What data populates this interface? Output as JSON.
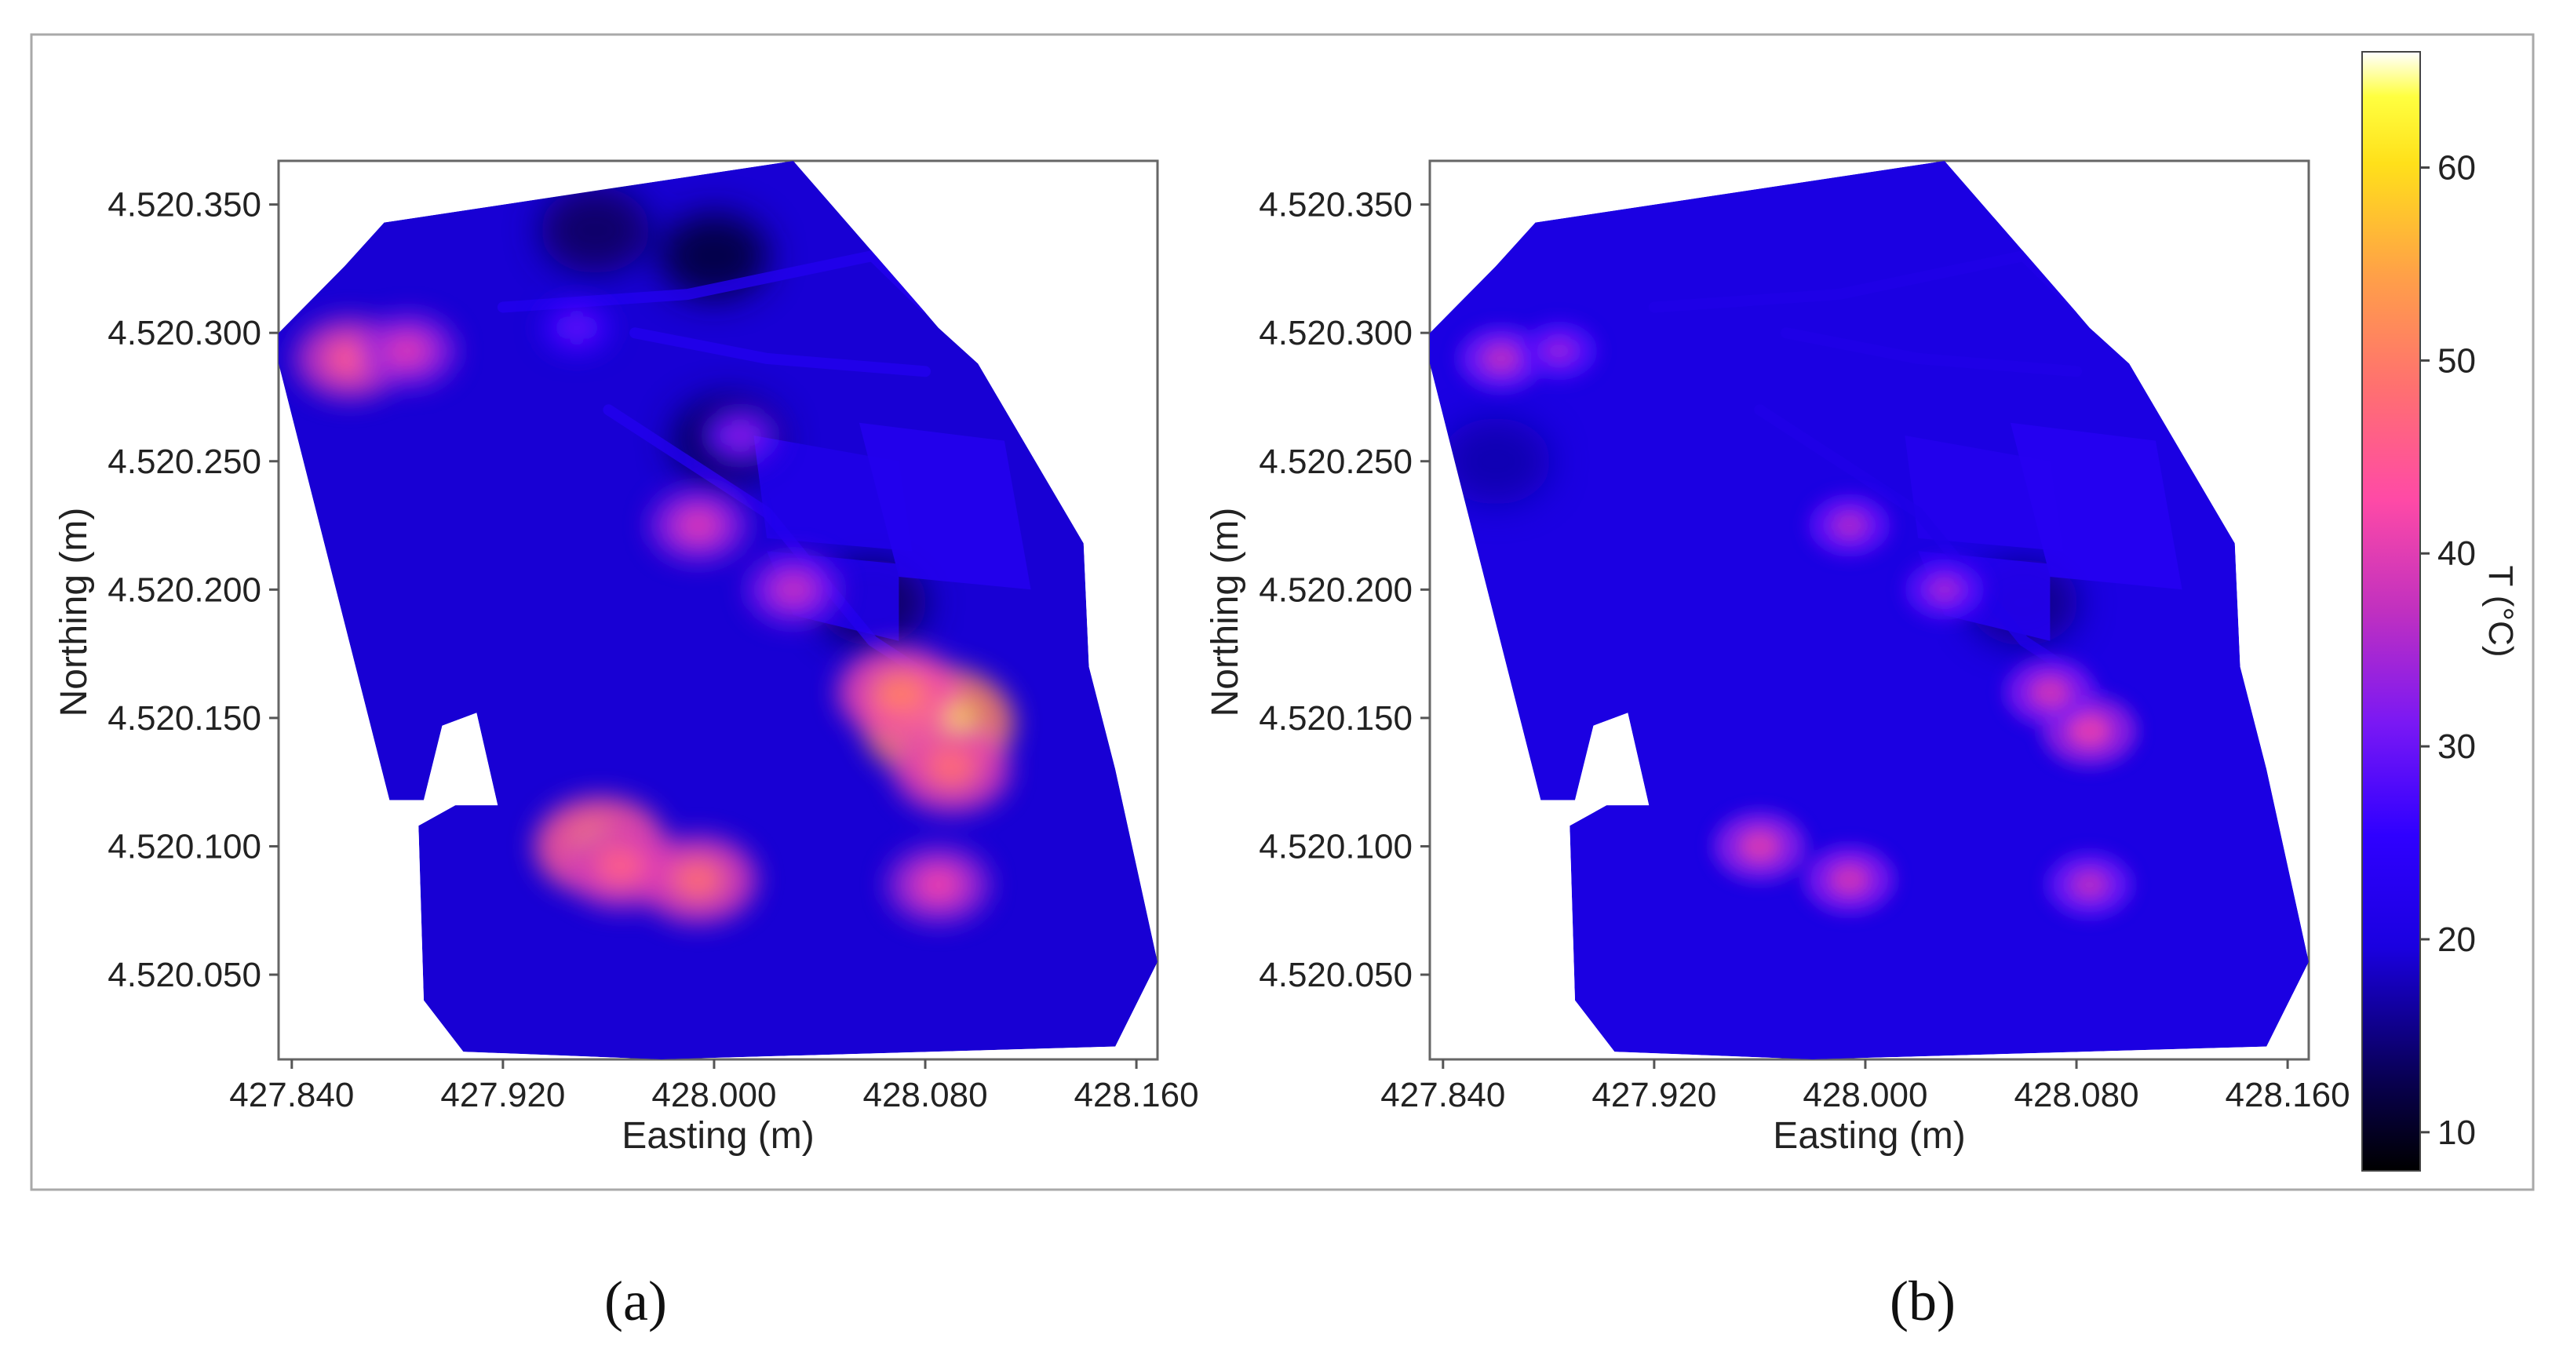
{
  "figure": {
    "captions": [
      "(a)",
      "(b)"
    ]
  },
  "chart_data": [
    {
      "type": "heatmap",
      "panel_label": "(a)",
      "title": "",
      "xlabel": "Easting (m)",
      "ylabel": "Northing (m)",
      "xlim": [
        427.835,
        428.168
      ],
      "ylim": [
        4520.017,
        4520.367
      ],
      "xticks": [
        427.84,
        427.92,
        428.0,
        428.08,
        428.16
      ],
      "xtick_labels": [
        "427.840",
        "427.920",
        "428.000",
        "428.080",
        "428.160"
      ],
      "yticks": [
        4520.05,
        4520.1,
        4520.15,
        4520.2,
        4520.25,
        4520.3,
        4520.35
      ],
      "ytick_labels": [
        "4.520.050",
        "4.520.100",
        "4.520.150",
        "4.520.200",
        "4.520.250",
        "4.520.300",
        "4.520.350"
      ],
      "grid": false,
      "colormap": "gnuplot2",
      "background_temperature_C": 19,
      "hotspots": [
        {
          "x": 428.085,
          "y": 4520.148,
          "peak_T_C": 62
        },
        {
          "x": 428.07,
          "y": 4520.16,
          "peak_T_C": 50
        },
        {
          "x": 428.09,
          "y": 4520.13,
          "peak_T_C": 48
        },
        {
          "x": 427.957,
          "y": 4520.1,
          "peak_T_C": 54
        },
        {
          "x": 427.965,
          "y": 4520.092,
          "peak_T_C": 46
        },
        {
          "x": 427.994,
          "y": 4520.087,
          "peak_T_C": 48
        },
        {
          "x": 428.085,
          "y": 4520.085,
          "peak_T_C": 42
        },
        {
          "x": 427.994,
          "y": 4520.225,
          "peak_T_C": 40
        },
        {
          "x": 428.03,
          "y": 4520.2,
          "peak_T_C": 38
        },
        {
          "x": 427.862,
          "y": 4520.29,
          "peak_T_C": 45
        },
        {
          "x": 427.884,
          "y": 4520.293,
          "peak_T_C": 40
        },
        {
          "x": 428.01,
          "y": 4520.26,
          "peak_T_C": 33
        },
        {
          "x": 427.948,
          "y": 4520.302,
          "peak_T_C": 30
        }
      ],
      "cool_areas": [
        {
          "x": 428.0,
          "y": 4520.33,
          "min_T_C": 11
        },
        {
          "x": 427.955,
          "y": 4520.34,
          "min_T_C": 13
        },
        {
          "x": 428.005,
          "y": 4520.258,
          "min_T_C": 12
        },
        {
          "x": 428.06,
          "y": 4520.195,
          "min_T_C": 13
        }
      ]
    },
    {
      "type": "heatmap",
      "panel_label": "(b)",
      "title": "",
      "xlabel": "Easting (m)",
      "ylabel": "Northing (m)",
      "xlim": [
        427.835,
        428.168
      ],
      "ylim": [
        4520.017,
        4520.367
      ],
      "xticks": [
        427.84,
        427.92,
        428.0,
        428.08,
        428.16
      ],
      "xtick_labels": [
        "427.840",
        "427.920",
        "428.000",
        "428.080",
        "428.160"
      ],
      "yticks": [
        4520.05,
        4520.1,
        4520.15,
        4520.2,
        4520.25,
        4520.3,
        4520.35
      ],
      "ytick_labels": [
        "4.520.050",
        "4.520.100",
        "4.520.150",
        "4.520.200",
        "4.520.250",
        "4.520.300",
        "4.520.350"
      ],
      "grid": false,
      "colormap": "gnuplot2",
      "background_temperature_C": 20,
      "hotspots": [
        {
          "x": 428.085,
          "y": 4520.145,
          "peak_T_C": 40
        },
        {
          "x": 428.07,
          "y": 4520.16,
          "peak_T_C": 38
        },
        {
          "x": 427.96,
          "y": 4520.1,
          "peak_T_C": 39
        },
        {
          "x": 427.994,
          "y": 4520.087,
          "peak_T_C": 38
        },
        {
          "x": 428.085,
          "y": 4520.085,
          "peak_T_C": 36
        },
        {
          "x": 427.994,
          "y": 4520.225,
          "peak_T_C": 35
        },
        {
          "x": 428.03,
          "y": 4520.2,
          "peak_T_C": 34
        },
        {
          "x": 427.862,
          "y": 4520.29,
          "peak_T_C": 36
        },
        {
          "x": 427.884,
          "y": 4520.293,
          "peak_T_C": 33
        }
      ],
      "cool_areas": [
        {
          "x": 428.06,
          "y": 4520.195,
          "min_T_C": 15
        },
        {
          "x": 427.86,
          "y": 4520.25,
          "min_T_C": 17
        }
      ]
    }
  ],
  "colorbar": {
    "label": "T (°C)",
    "range": [
      8,
      66
    ],
    "ticks": [
      10,
      20,
      30,
      40,
      50,
      60
    ],
    "tick_labels": [
      "10",
      "20",
      "30",
      "40",
      "50",
      "60"
    ],
    "colormap": "gnuplot2",
    "placement": "right"
  },
  "colors": {
    "frame": "#a9a9a9",
    "axes": "#555555",
    "text": "#222222",
    "background": "#ffffff"
  }
}
